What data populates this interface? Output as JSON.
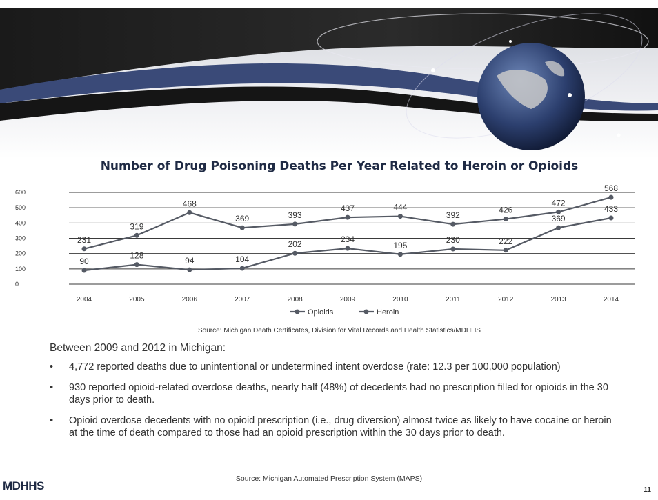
{
  "chart_data": {
    "type": "line",
    "title": "Number of Drug Poisoning Deaths Per Year Related to Heroin or Opioids",
    "categories": [
      "2004",
      "2005",
      "2006",
      "2007",
      "2008",
      "2009",
      "2010",
      "2011",
      "2012",
      "2013",
      "2014"
    ],
    "series": [
      {
        "name": "Opioids",
        "values": [
          231,
          319,
          468,
          369,
          393,
          437,
          444,
          392,
          426,
          472,
          568
        ]
      },
      {
        "name": "Heroin",
        "values": [
          90,
          128,
          94,
          104,
          202,
          234,
          195,
          230,
          222,
          369,
          433
        ]
      }
    ],
    "ylim": [
      0,
      600
    ],
    "yticks": [
      "0",
      "100",
      "200",
      "300",
      "400",
      "500",
      "600"
    ],
    "grid": true,
    "legend": "bottom"
  },
  "chart_source": "Source: Michigan Death Certificates, Division for Vital Records and Health Statistics/MDHHS",
  "intro": "Between 2009 and 2012 in Michigan:",
  "bullets": [
    "4,772 reported deaths due to unintentional or undetermined intent overdose (rate: 12.3 per 100,000 population)",
    "930 reported opioid-related overdose deaths, nearly half (48%) of decedents had no prescription filled for opioids in the 30 days prior to death.",
    "Opioid overdose decedents with no opioid prescription (i.e., drug diversion) almost twice as likely to have cocaine or heroin at the time of death compared to those had an opioid prescription within the 30 days prior to death."
  ],
  "bullet_symbol": "•",
  "footer_source": "Source: Michigan Automated Prescription System (MAPS)",
  "logo_text": "MDHHS",
  "page_number": "11",
  "colors": {
    "line": "#555a64",
    "grid": "#3a3a3a",
    "banner_dark": "#222222",
    "banner_blue": "#2a3a6a"
  }
}
